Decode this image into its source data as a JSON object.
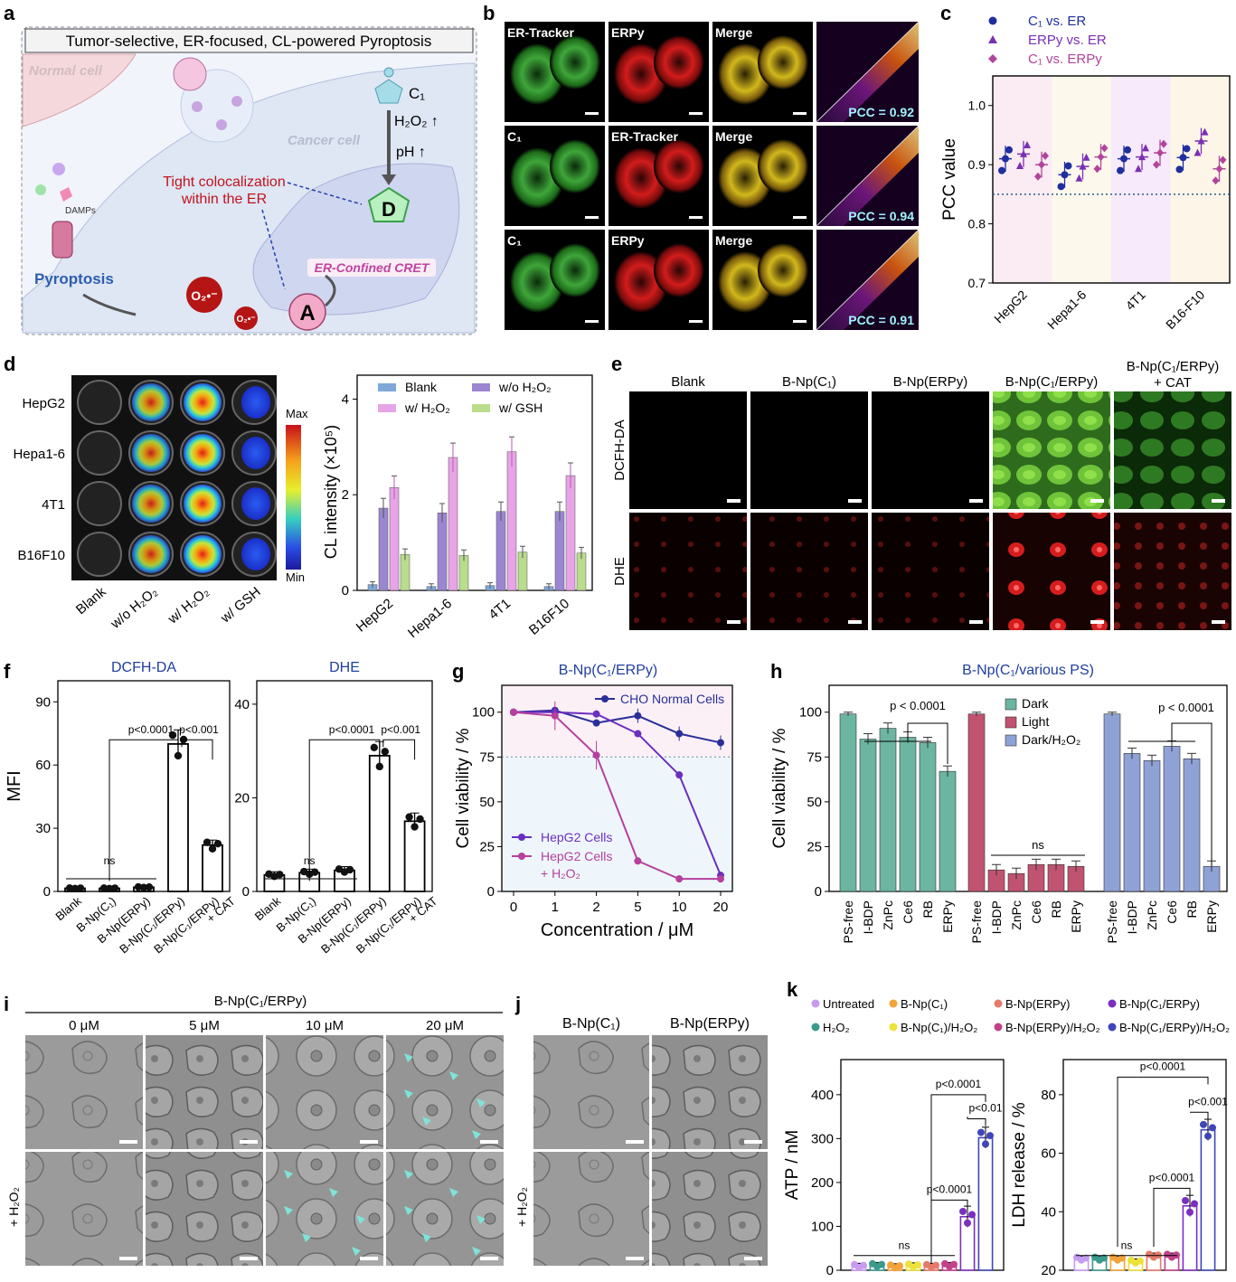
{
  "panels": {
    "a": "a",
    "b": "b",
    "c": "c",
    "d": "d",
    "e": "e",
    "f": "f",
    "g": "g",
    "h": "h",
    "i": "i",
    "j": "j",
    "k": "k"
  },
  "schematic": {
    "title": "Tumor-selective, ER-focused, CL-powered Pyroptosis",
    "normal_cell": "Normal cell",
    "cancer_cell": "Cancer cell",
    "c1": "C₁",
    "h2o2": "H₂O₂ ↑",
    "ph": "pH ↑",
    "colocalization": [
      "Tight colocalization",
      "within the ER"
    ],
    "donor": "D",
    "acceptor": "A",
    "cret": "ER-Confined CRET",
    "superoxide": "O₂•⁻",
    "damps": "DAMPs",
    "pyroptosis": "Pyroptosis"
  },
  "panel_b": {
    "rows": [
      {
        "labels": [
          "ER-Tracker",
          "ERPy",
          "Merge"
        ],
        "pcc": "PCC = 0.92"
      },
      {
        "labels": [
          "C₁",
          "ER-Tracker",
          "Merge"
        ],
        "pcc": "PCC = 0.94"
      },
      {
        "labels": [
          "C₁",
          "ERPy",
          "Merge"
        ],
        "pcc": "PCC = 0.91"
      }
    ]
  },
  "chart_data": [
    {
      "panel": "c",
      "type": "scatter",
      "ylabel": "PCC value",
      "ylim": [
        0.7,
        1.05
      ],
      "yticks": [
        "0.7",
        "0.8",
        "0.9",
        "1.0"
      ],
      "threshold": 0.85,
      "categories": [
        "HepG2",
        "Hepa1-6",
        "4T1",
        "B16-F10"
      ],
      "legend": [
        "C₁ vs. ER",
        "ERPy vs. ER",
        "C₁ vs. ERPy"
      ],
      "series": [
        {
          "name": "C₁ vs. ER",
          "color": "#1f2f9e",
          "values": [
            0.91,
            0.883,
            0.91,
            0.912
          ]
        },
        {
          "name": "ERPy vs. ER",
          "color": "#7a2fb3",
          "values": [
            0.918,
            0.897,
            0.913,
            0.94
          ]
        },
        {
          "name": "C₁ vs. ERPy",
          "color": "#b1449b",
          "values": [
            0.9,
            0.913,
            0.92,
            0.893
          ]
        }
      ]
    },
    {
      "panel": "d",
      "type": "bar",
      "ylabel": "CL intensity (×10⁵)",
      "ylim": [
        0,
        4.5
      ],
      "yticks": [
        "0",
        "2",
        "4"
      ],
      "categories": [
        "HepG2",
        "Hepa1-6",
        "4T1",
        "B16F10"
      ],
      "legend": [
        "Blank",
        "w/o H₂O₂",
        "w/ H₂O₂",
        "w/ GSH"
      ],
      "series": [
        {
          "name": "Blank",
          "color": "#7fa8d8",
          "values": [
            0.12,
            0.08,
            0.1,
            0.08
          ]
        },
        {
          "name": "w/o H₂O₂",
          "color": "#9b86d1",
          "values": [
            1.72,
            1.62,
            1.65,
            1.65
          ]
        },
        {
          "name": "w/ H₂O₂",
          "color": "#e7a4e6",
          "values": [
            2.15,
            2.78,
            2.9,
            2.4
          ]
        },
        {
          "name": "w/ GSH",
          "color": "#b9dc8d",
          "values": [
            0.75,
            0.73,
            0.8,
            0.78
          ]
        }
      ]
    },
    {
      "panel": "f-left",
      "type": "bar",
      "title": "DCFH-DA",
      "ylabel": "MFI",
      "ylim": [
        0,
        100
      ],
      "yticks": [
        "0",
        "30",
        "60",
        "90"
      ],
      "categories": [
        "Blank",
        "B-Np(C₁)",
        "B-Np(ERPy)",
        "B-Np(C₁/ERPy)",
        "B-Np(C₁/ERPy) + CAT"
      ],
      "values": [
        1.5,
        1.5,
        2,
        70,
        22
      ],
      "annotations": [
        "ns",
        "p<0.0001",
        "p<0.001"
      ]
    },
    {
      "panel": "f-right",
      "type": "bar",
      "title": "DHE",
      "ylabel": "",
      "ylim": [
        0,
        45
      ],
      "yticks": [
        "0",
        "20",
        "40"
      ],
      "categories": [
        "Blank",
        "B-Np(C₁)",
        "B-Np(ERPy)",
        "B-Np(C₁/ERPy)",
        "B-Np(C₁/ERPy) + CAT"
      ],
      "values": [
        3.5,
        4,
        4.5,
        29,
        15
      ],
      "annotations": [
        "ns",
        "p<0.0001",
        "p<0.001"
      ]
    },
    {
      "panel": "g",
      "type": "line",
      "title": "B-Np(C₁/ERPy)",
      "xlabel": "Concentration / μM",
      "ylabel": "Cell viability / %",
      "x": [
        "0",
        "1",
        "2",
        "5",
        "10",
        "20"
      ],
      "ylim": [
        0,
        115
      ],
      "yticks": [
        "0",
        "25",
        "50",
        "75",
        "100"
      ],
      "series": [
        {
          "name": "CHO Normal Cells",
          "color": "#2a2f9a",
          "values": [
            100,
            101,
            94,
            98,
            88,
            83
          ]
        },
        {
          "name": "HepG2 Cells",
          "color": "#6b2fbf",
          "values": [
            100,
            100,
            99,
            88,
            65,
            9
          ]
        },
        {
          "name": "HepG2 Cells + H₂O₂",
          "color": "#b5409d",
          "values": [
            100,
            98,
            76,
            17,
            7,
            7
          ]
        }
      ]
    },
    {
      "panel": "h",
      "type": "bar",
      "title": "B-Np(C₁/various PS)",
      "ylabel": "Cell viability / %",
      "ylim": [
        0,
        115
      ],
      "yticks": [
        "0",
        "25",
        "50",
        "75",
        "100"
      ],
      "categories": [
        "PS-free",
        "I-BDP",
        "ZnPc",
        "Ce6",
        "RB",
        "ERPy"
      ],
      "legend": [
        "Dark",
        "Light",
        "Dark/H₂O₂"
      ],
      "series": [
        {
          "name": "Dark",
          "color": "#6bb5a1",
          "values": [
            99,
            85,
            91,
            86,
            83,
            67
          ]
        },
        {
          "name": "Light",
          "color": "#c05370",
          "values": [
            99,
            12,
            10,
            15,
            15,
            14
          ]
        },
        {
          "name": "Dark/H₂O₂",
          "color": "#8fa2d6",
          "values": [
            99,
            77,
            73,
            81,
            74,
            14
          ]
        }
      ],
      "annotations": [
        "p < 0.0001",
        "ns",
        "p < 0.0001"
      ]
    },
    {
      "panel": "k-left",
      "type": "bar",
      "ylabel": "ATP / nM",
      "ylim": [
        0,
        480
      ],
      "yticks": [
        "0",
        "100",
        "200",
        "300",
        "400"
      ],
      "categories": [
        "Untreated",
        "H₂O₂",
        "B-Np(C₁)",
        "B-Np(C₁)/H₂O₂",
        "B-Np(ERPy)",
        "B-Np(ERPy)/H₂O₂",
        "B-Np(C₁/ERPy)",
        "B-Np(C₁/ERPy)/H₂O₂"
      ],
      "values": [
        10,
        12,
        9,
        11,
        10,
        12,
        122,
        302
      ],
      "annotations": [
        "ns",
        "p<0.0001",
        "p<0.0001",
        "p<0.01"
      ]
    },
    {
      "panel": "k-right",
      "type": "bar",
      "ylabel": "LDH release / %",
      "ylim": [
        20,
        92
      ],
      "yticks": [
        "20",
        "40",
        "60",
        "80"
      ],
      "categories": [
        "Untreated",
        "H₂O₂",
        "B-Np(C₁)",
        "B-Np(C₁)/H₂O₂",
        "B-Np(ERPy)",
        "B-Np(ERPy)/H₂O₂",
        "B-Np(C₁/ERPy)",
        "B-Np(C₁/ERPy)/H₂O₂"
      ],
      "values": [
        24,
        24,
        24,
        23,
        25,
        25,
        42,
        68
      ],
      "annotations": [
        "ns",
        "p<0.0001",
        "p<0.0001",
        "p<0.001"
      ]
    }
  ],
  "panel_d_image": {
    "rows": [
      "HepG2",
      "Hepa1-6",
      "4T1",
      "B16F10"
    ],
    "cols": [
      "Blank",
      "w/o H₂O₂",
      "w/ H₂O₂",
      "w/ GSH"
    ],
    "scale_max": "Max",
    "scale_min": "Min"
  },
  "panel_e": {
    "cols": [
      "Blank",
      "B-Np(C₁)",
      "B-Np(ERPy)",
      "B-Np(C₁/ERPy)",
      "B-Np(C₁/ERPy) + CAT"
    ],
    "rows": [
      "DCFH-DA",
      "DHE"
    ]
  },
  "panel_i": {
    "title": "B-Np(C₁/ERPy)",
    "cols": [
      "0 μM",
      "5 μM",
      "10 μM",
      "20 μM"
    ],
    "row_label": "+ H₂O₂"
  },
  "panel_j": {
    "cols": [
      "B-Np(C₁)",
      "B-Np(ERPy)"
    ],
    "row_label": "+ H₂O₂"
  },
  "panel_k_legend": [
    {
      "label": "Untreated",
      "color": "#c79cf0"
    },
    {
      "label": "B-Np(C₁)",
      "color": "#f2a33a"
    },
    {
      "label": "B-Np(ERPy)",
      "color": "#e57a69"
    },
    {
      "label": "B-Np(C₁/ERPy)",
      "color": "#7a2fc0"
    },
    {
      "label": "H₂O₂",
      "color": "#3c9a8e"
    },
    {
      "label": "B-Np(C₁)/H₂O₂",
      "color": "#ece23a"
    },
    {
      "label": "B-Np(ERPy)/H₂O₂",
      "color": "#c2428a"
    },
    {
      "label": "B-Np(C₁/ERPy)/H₂O₂",
      "color": "#3f46b8"
    }
  ]
}
